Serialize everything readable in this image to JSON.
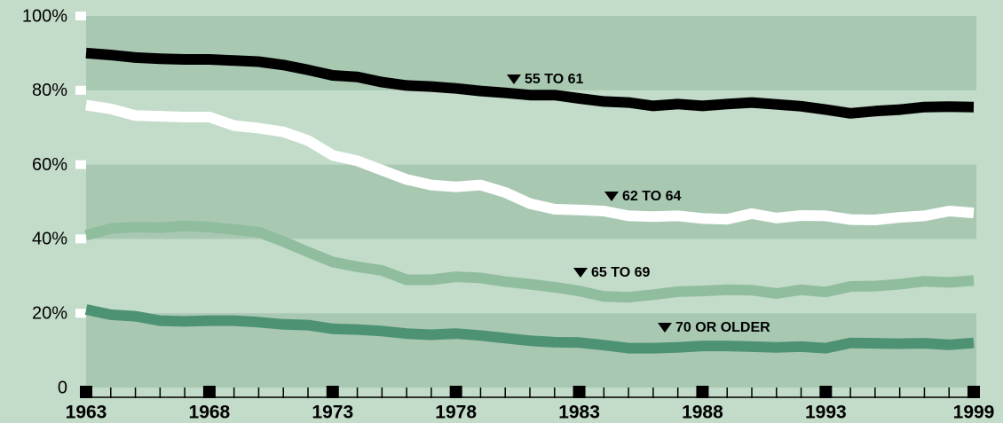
{
  "chart_data": {
    "type": "line",
    "x": [
      1963,
      1964,
      1965,
      1966,
      1967,
      1968,
      1969,
      1970,
      1971,
      1972,
      1973,
      1974,
      1975,
      1976,
      1977,
      1978,
      1979,
      1980,
      1981,
      1982,
      1983,
      1984,
      1985,
      1986,
      1987,
      1988,
      1989,
      1990,
      1991,
      1992,
      1993,
      1994,
      1995,
      1996,
      1997,
      1998,
      1999
    ],
    "xlim": [
      1963,
      1999
    ],
    "xticks": [
      1963,
      1968,
      1973,
      1978,
      1983,
      1988,
      1993,
      1999
    ],
    "ylim": [
      0,
      100
    ],
    "yticks": [
      0,
      {
        "value": 20,
        "label": "20%"
      },
      {
        "value": 40,
        "label": "40%"
      },
      {
        "value": 60,
        "label": "60%"
      },
      {
        "value": 80,
        "label": "80%"
      },
      {
        "value": 100,
        "label": "100%"
      }
    ],
    "grid": "bands",
    "series": [
      {
        "name": "55 TO 61",
        "color": "#000000",
        "values": [
          90,
          89.5,
          88.8,
          88.5,
          88.3,
          88.3,
          88,
          87.7,
          86.8,
          85.5,
          84,
          83.6,
          82.2,
          81.3,
          81,
          80.5,
          79.8,
          79.3,
          78.7,
          78.7,
          77.8,
          77,
          76.7,
          75.8,
          76.3,
          75.8,
          76.3,
          76.7,
          76.2,
          75.7,
          74.8,
          73.8,
          74.4,
          74.8,
          75.5,
          75.6,
          75.5
        ]
      },
      {
        "name": "62 TO 64",
        "color": "#ffffff",
        "values": [
          76,
          75,
          73.2,
          73,
          72.8,
          72.8,
          70.5,
          69.8,
          68.8,
          66.5,
          62.5,
          61,
          58.5,
          56,
          54.5,
          54,
          54.5,
          52.5,
          49.5,
          48,
          47.8,
          47.5,
          46.2,
          46,
          46.2,
          45.5,
          45.3,
          46.8,
          45.6,
          46.3,
          46.2,
          45.2,
          45.1,
          45.8,
          46.2,
          47.5,
          47
        ]
      },
      {
        "name": "65 TO 69",
        "color": "#8fbd9e",
        "values": [
          41,
          42.8,
          43.2,
          43,
          43.5,
          43.2,
          42.5,
          41.8,
          39.3,
          36.5,
          33.8,
          32.5,
          31.5,
          29,
          29,
          29.8,
          29.5,
          28.5,
          27.8,
          27,
          26,
          24.5,
          24.3,
          25,
          25.8,
          26,
          26.3,
          26.2,
          25.3,
          26.3,
          25.7,
          27.2,
          27.3,
          27.8,
          28.6,
          28.3,
          28.8
        ]
      },
      {
        "name": "70 OR OLDER",
        "color": "#4e9274",
        "values": [
          21,
          19.6,
          19.2,
          18,
          17.8,
          18,
          18,
          17.6,
          17,
          16.8,
          15.8,
          15.6,
          15.2,
          14.5,
          14.2,
          14.5,
          14,
          13.3,
          12.6,
          12.2,
          12.1,
          11.4,
          10.6,
          10.6,
          10.8,
          11.2,
          11.2,
          11,
          10.8,
          11,
          10.6,
          12,
          11.9,
          11.8,
          11.9,
          11.5,
          12
        ]
      }
    ]
  }
}
